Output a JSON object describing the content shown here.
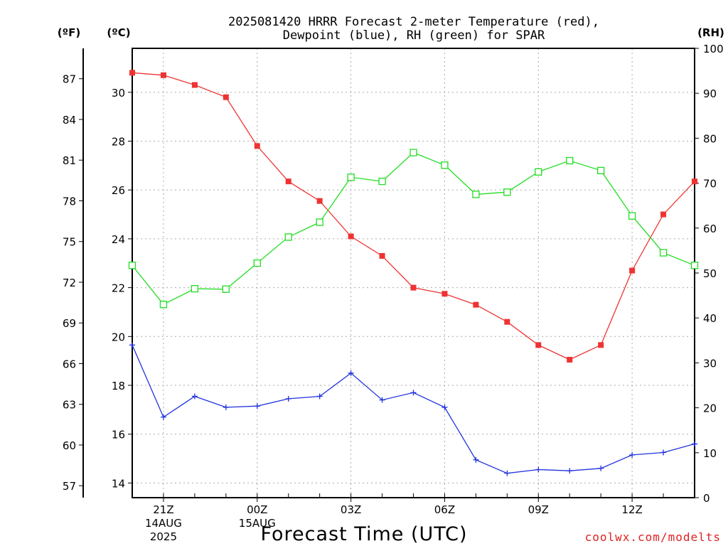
{
  "chart_data": {
    "type": "line",
    "title_line1": "2025081420 HRRR Forecast 2-meter Temperature (red),",
    "title_line2": "Dewpoint (blue), RH (green) for SPAR",
    "xlabel": "Forecast Time (UTC)",
    "credit": "coolwx.com/modelts",
    "unit_f": "(ºF)",
    "unit_c": "(ºC)",
    "unit_rh": "(RH)",
    "x": [
      20,
      21,
      22,
      23,
      0,
      1,
      2,
      3,
      4,
      5,
      6,
      7,
      8,
      9,
      10,
      11,
      12,
      13,
      14
    ],
    "x_ticks": [
      {
        "hour": 21,
        "lines": [
          "21Z",
          "14AUG",
          "2025"
        ]
      },
      {
        "hour": 0,
        "lines": [
          "00Z",
          "15AUG"
        ]
      },
      {
        "hour": 3,
        "lines": [
          "03Z"
        ]
      },
      {
        "hour": 6,
        "lines": [
          "06Z"
        ]
      },
      {
        "hour": 9,
        "lines": [
          "09Z"
        ]
      },
      {
        "hour": 12,
        "lines": [
          "12Z"
        ]
      }
    ],
    "ylim_c": [
      13.4,
      31.8
    ],
    "ylim_rh": [
      0,
      100
    ],
    "c_ticks": [
      14,
      16,
      18,
      20,
      22,
      24,
      26,
      28,
      30
    ],
    "f_ticks": [
      57,
      60,
      63,
      66,
      69,
      72,
      75,
      78,
      81,
      84,
      87
    ],
    "rh_ticks": [
      0,
      10,
      20,
      30,
      40,
      50,
      60,
      70,
      80,
      90,
      100
    ],
    "grid": true,
    "series": [
      {
        "name": "Temperature",
        "axis": "C",
        "color": "#ee3333",
        "marker": "filled-square",
        "values": [
          30.8,
          30.7,
          30.3,
          29.8,
          27.8,
          26.35,
          25.55,
          24.1,
          23.3,
          22.0,
          21.75,
          21.3,
          20.6,
          19.65,
          19.05,
          19.65,
          22.7,
          25.0,
          26.35
        ]
      },
      {
        "name": "Dewpoint",
        "axis": "C",
        "color": "#2233dd",
        "marker": "plus",
        "values": [
          19.65,
          16.7,
          17.55,
          17.1,
          17.15,
          17.45,
          17.55,
          18.5,
          17.4,
          17.7,
          17.1,
          14.95,
          14.4,
          14.55,
          14.5,
          14.6,
          15.15,
          15.25,
          15.6
        ]
      },
      {
        "name": "RH",
        "axis": "RH",
        "color": "#22dd22",
        "marker": "open-square",
        "values": [
          51.7,
          43.0,
          46.5,
          46.4,
          52.2,
          58.0,
          61.3,
          71.3,
          70.4,
          76.8,
          74.0,
          67.5,
          68.0,
          72.5,
          75.0,
          72.8,
          62.7,
          54.5,
          51.7
        ]
      }
    ]
  }
}
